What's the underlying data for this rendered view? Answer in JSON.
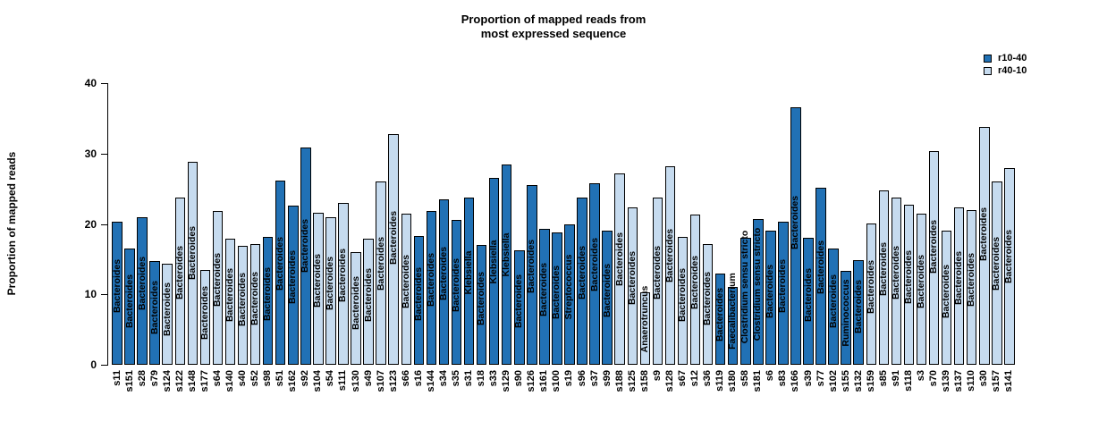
{
  "title": {
    "line1": "Proportion of mapped reads from",
    "line2": "most expressed sequence"
  },
  "y_axis": {
    "label": "Proportion of mapped reads",
    "ticks": [
      0,
      10,
      20,
      30,
      40
    ]
  },
  "legend": [
    {
      "label": "r10-40",
      "color": "#2171B5"
    },
    {
      "label": "r40-10",
      "color": "#C6DBEF"
    }
  ],
  "chart_data": {
    "type": "bar",
    "title": "Proportion of mapped reads from most expressed sequence",
    "xlabel": "",
    "ylabel": "Proportion of mapped reads",
    "ylim": [
      0,
      40
    ],
    "grid": false,
    "legend_position": "top-right",
    "groups": {
      "r10-40": "#2171B5",
      "r40-10": "#C6DBEF"
    },
    "bars": [
      {
        "sample": "s11",
        "genus": "Bacteroides",
        "group": "r10-40",
        "value": 20.3
      },
      {
        "sample": "s151",
        "genus": "Bacteroides",
        "group": "r10-40",
        "value": 16.5
      },
      {
        "sample": "s28",
        "genus": "Bacteroides",
        "group": "r10-40",
        "value": 20.9
      },
      {
        "sample": "s79",
        "genus": "Bacteroides",
        "group": "r10-40",
        "value": 14.7
      },
      {
        "sample": "s124",
        "genus": "Bacteroides",
        "group": "r40-10",
        "value": 14.4
      },
      {
        "sample": "s122",
        "genus": "Bacteroides",
        "group": "r40-10",
        "value": 23.8
      },
      {
        "sample": "s148",
        "genus": "Bacteroides",
        "group": "r40-10",
        "value": 28.8
      },
      {
        "sample": "s177",
        "genus": "Bacteroides",
        "group": "r40-10",
        "value": 13.5
      },
      {
        "sample": "s64",
        "genus": "Bacteroides",
        "group": "r40-10",
        "value": 21.9
      },
      {
        "sample": "s140",
        "genus": "Bacteroides",
        "group": "r40-10",
        "value": 17.9
      },
      {
        "sample": "s40",
        "genus": "Bacteroides",
        "group": "r40-10",
        "value": 16.9
      },
      {
        "sample": "s52",
        "genus": "Bacteroides",
        "group": "r40-10",
        "value": 17.1
      },
      {
        "sample": "s98",
        "genus": "Bacteroides",
        "group": "r10-40",
        "value": 18.2
      },
      {
        "sample": "s51",
        "genus": "Bacteroides",
        "group": "r10-40",
        "value": 26.1
      },
      {
        "sample": "s162",
        "genus": "Bacteroides",
        "group": "r10-40",
        "value": 22.6
      },
      {
        "sample": "s92",
        "genus": "Bacteroides",
        "group": "r10-40",
        "value": 30.8
      },
      {
        "sample": "s104",
        "genus": "Bacteroides",
        "group": "r40-10",
        "value": 21.6
      },
      {
        "sample": "s54",
        "genus": "Bacteroides",
        "group": "r40-10",
        "value": 21.0
      },
      {
        "sample": "s111",
        "genus": "Bacteroides",
        "group": "r40-10",
        "value": 23.0
      },
      {
        "sample": "s130",
        "genus": "Bacteroides",
        "group": "r40-10",
        "value": 16.0
      },
      {
        "sample": "s49",
        "genus": "Bacteroides",
        "group": "r40-10",
        "value": 17.9
      },
      {
        "sample": "s107",
        "genus": "Bacteroides",
        "group": "r40-10",
        "value": 26.0
      },
      {
        "sample": "s123",
        "genus": "Bacteroides",
        "group": "r40-10",
        "value": 32.8
      },
      {
        "sample": "s66",
        "genus": "Bacteroides",
        "group": "r40-10",
        "value": 21.4
      },
      {
        "sample": "s16",
        "genus": "Bacteroides",
        "group": "r10-40",
        "value": 18.3
      },
      {
        "sample": "s144",
        "genus": "Bacteroides",
        "group": "r10-40",
        "value": 21.9
      },
      {
        "sample": "s34",
        "genus": "Bacteroides",
        "group": "r10-40",
        "value": 23.5
      },
      {
        "sample": "s35",
        "genus": "Bacteroides",
        "group": "r10-40",
        "value": 20.6
      },
      {
        "sample": "s31",
        "genus": "Klebsiella",
        "group": "r10-40",
        "value": 23.8
      },
      {
        "sample": "s18",
        "genus": "Bacteroides",
        "group": "r10-40",
        "value": 17.0
      },
      {
        "sample": "s33",
        "genus": "Klebsiella",
        "group": "r10-40",
        "value": 26.5
      },
      {
        "sample": "s129",
        "genus": "Klebsiella",
        "group": "r10-40",
        "value": 28.4
      },
      {
        "sample": "s90",
        "genus": "Bacteroides",
        "group": "r10-40",
        "value": 16.3
      },
      {
        "sample": "s126",
        "genus": "Bacteroides",
        "group": "r10-40",
        "value": 25.5
      },
      {
        "sample": "s161",
        "genus": "Bacteroides",
        "group": "r10-40",
        "value": 19.3
      },
      {
        "sample": "s100",
        "genus": "Bacteroides",
        "group": "r10-40",
        "value": 18.8
      },
      {
        "sample": "s19",
        "genus": "Streptococcus",
        "group": "r10-40",
        "value": 20.0
      },
      {
        "sample": "s96",
        "genus": "Bacteroides",
        "group": "r10-40",
        "value": 23.7
      },
      {
        "sample": "s37",
        "genus": "Bacteroides",
        "group": "r10-40",
        "value": 25.8
      },
      {
        "sample": "s99",
        "genus": "Bacteroides",
        "group": "r10-40",
        "value": 19.1
      },
      {
        "sample": "s188",
        "genus": "Bacteroides",
        "group": "r40-10",
        "value": 27.2
      },
      {
        "sample": "s125",
        "genus": "Bacteroides",
        "group": "r40-10",
        "value": 22.3
      },
      {
        "sample": "s158",
        "genus": "Anaerotruncus",
        "group": "r40-10",
        "value": 10.3
      },
      {
        "sample": "s9",
        "genus": "Bacteroides",
        "group": "r40-10",
        "value": 23.8
      },
      {
        "sample": "s128",
        "genus": "Bacteroides",
        "group": "r40-10",
        "value": 28.2
      },
      {
        "sample": "s67",
        "genus": "Bacteroides",
        "group": "r40-10",
        "value": 18.1
      },
      {
        "sample": "s12",
        "genus": "Bacteroides",
        "group": "r40-10",
        "value": 21.3
      },
      {
        "sample": "s36",
        "genus": "Bacteroides",
        "group": "r40-10",
        "value": 17.2
      },
      {
        "sample": "s119",
        "genus": "Bacteroides",
        "group": "r10-40",
        "value": 12.9
      },
      {
        "sample": "s180",
        "genus": "Faecalibacterium",
        "group": "r10-40",
        "value": 11.0
      },
      {
        "sample": "s58",
        "genus": "Clostridium sensu stricto",
        "group": "r10-40",
        "value": 18.0
      },
      {
        "sample": "s181",
        "genus": "Clostridium sensu stricto",
        "group": "r10-40",
        "value": 20.7
      },
      {
        "sample": "s6",
        "genus": "Bacteroides",
        "group": "r10-40",
        "value": 19.0
      },
      {
        "sample": "s83",
        "genus": "Bacteroides",
        "group": "r10-40",
        "value": 20.3
      },
      {
        "sample": "s166",
        "genus": "Bacteroides",
        "group": "r10-40",
        "value": 36.6
      },
      {
        "sample": "s39",
        "genus": "Bacteroides",
        "group": "r10-40",
        "value": 18.0
      },
      {
        "sample": "s77",
        "genus": "Bacteroides",
        "group": "r10-40",
        "value": 25.2
      },
      {
        "sample": "s102",
        "genus": "Bacteroides",
        "group": "r10-40",
        "value": 16.5
      },
      {
        "sample": "s155",
        "genus": "Ruminococcus",
        "group": "r10-40",
        "value": 13.3
      },
      {
        "sample": "s132",
        "genus": "Bacteroides",
        "group": "r10-40",
        "value": 14.9
      },
      {
        "sample": "s159",
        "genus": "Bacteroides",
        "group": "r40-10",
        "value": 20.1
      },
      {
        "sample": "s85",
        "genus": "Bacteroides",
        "group": "r40-10",
        "value": 24.7
      },
      {
        "sample": "s91",
        "genus": "Bacteroides",
        "group": "r40-10",
        "value": 23.8
      },
      {
        "sample": "s118",
        "genus": "Bacteroides",
        "group": "r40-10",
        "value": 22.7
      },
      {
        "sample": "s3",
        "genus": "Bacteroides",
        "group": "r40-10",
        "value": 21.4
      },
      {
        "sample": "s70",
        "genus": "Bacteroides",
        "group": "r40-10",
        "value": 30.4
      },
      {
        "sample": "s139",
        "genus": "Bacteroides",
        "group": "r40-10",
        "value": 19.0
      },
      {
        "sample": "s137",
        "genus": "Bacteroides",
        "group": "r40-10",
        "value": 22.4
      },
      {
        "sample": "s110",
        "genus": "Bacteroides",
        "group": "r40-10",
        "value": 22.0
      },
      {
        "sample": "s30",
        "genus": "Bacteroides",
        "group": "r40-10",
        "value": 33.8
      },
      {
        "sample": "s157",
        "genus": "Bacteroides",
        "group": "r40-10",
        "value": 26.0
      },
      {
        "sample": "s141",
        "genus": "Bacteroides",
        "group": "r40-10",
        "value": 28.0
      }
    ]
  }
}
